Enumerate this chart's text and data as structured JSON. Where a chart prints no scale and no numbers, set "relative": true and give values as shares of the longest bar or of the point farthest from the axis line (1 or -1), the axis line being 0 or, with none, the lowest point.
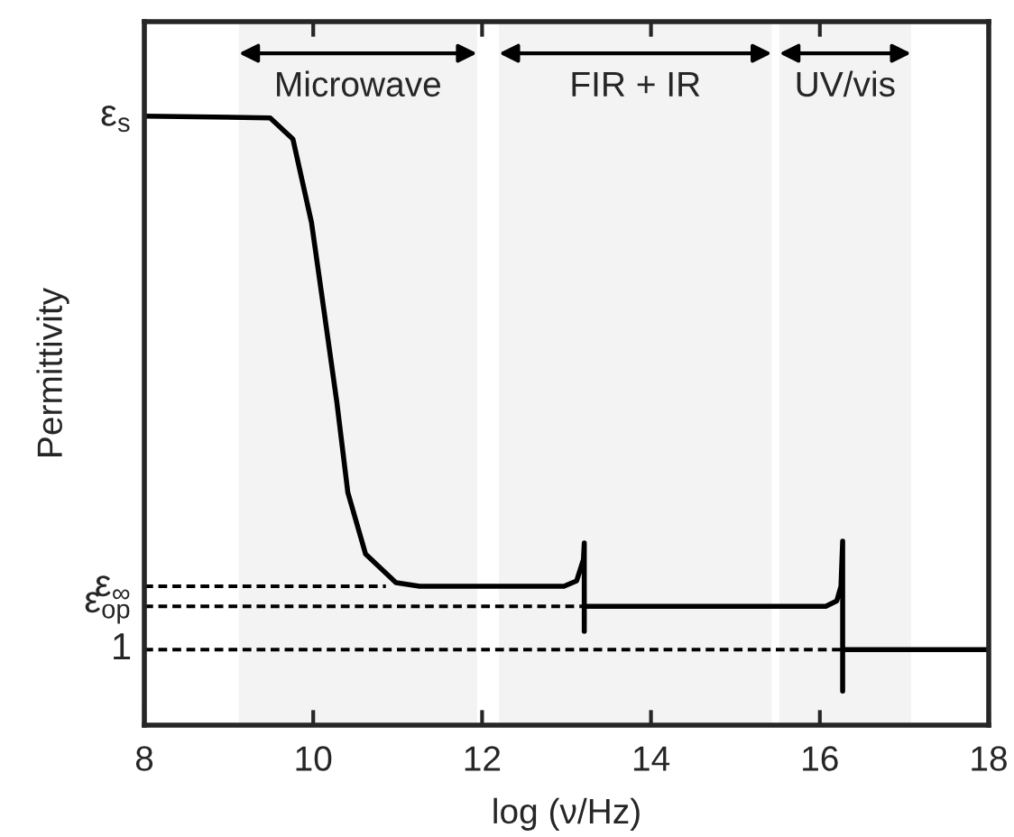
{
  "chart_data": {
    "type": "line",
    "xlabel": "log (ν/Hz)",
    "ylabel": "Permittivity",
    "relative": true,
    "xlim": [
      8,
      18
    ],
    "xticks": [
      8,
      10,
      12,
      14,
      16,
      18
    ],
    "grid": false,
    "legend": false,
    "marker": "none",
    "series": [
      {
        "color": "#000000",
        "line_style": "solid",
        "x": [
          8,
          9.49,
          9.76,
          9.98,
          10.13,
          10.28,
          10.41,
          10.62,
          10.98,
          11.26,
          12.97,
          13.12,
          13.2,
          13.21,
          13.21,
          13.21,
          16.07,
          16.2,
          16.25,
          16.27,
          16.27,
          16.27,
          18
        ],
        "values": [
          1,
          0.997,
          0.962,
          0.825,
          0.678,
          0.53,
          0.382,
          0.281,
          0.234,
          0.228,
          0.228,
          0.237,
          0.272,
          0.299,
          0.154,
          0.195,
          0.195,
          0.204,
          0.228,
          0.302,
          0.056,
          0.124,
          0.124
        ]
      },
      {
        "name": "ε$_{∞}$",
        "color": "#000000",
        "line_style": "dashed",
        "x": [
          8,
          10.86
        ],
        "values": [
          0.228,
          0.228
        ]
      },
      {
        "name": "ε$_{op}$",
        "color": "#000000",
        "line_style": "dashed",
        "x": [
          8,
          13.21
        ],
        "values": [
          0.195,
          0.195
        ]
      },
      {
        "name": "1",
        "color": "#000000",
        "line_style": "dashed",
        "x": [
          8,
          16.27
        ],
        "values": [
          0.124,
          0.124
        ]
      }
    ],
    "bands": [
      {
        "axis": "x",
        "from": 9.12,
        "to": 11.94,
        "label": "Microwave"
      },
      {
        "axis": "x",
        "from": 12.2,
        "to": 15.43,
        "label": "FIR + IR"
      },
      {
        "axis": "x",
        "from": 15.52,
        "to": 17.08,
        "label": "UV/vis"
      }
    ],
    "annotations": [
      "ε$_{s}$"
    ]
  }
}
